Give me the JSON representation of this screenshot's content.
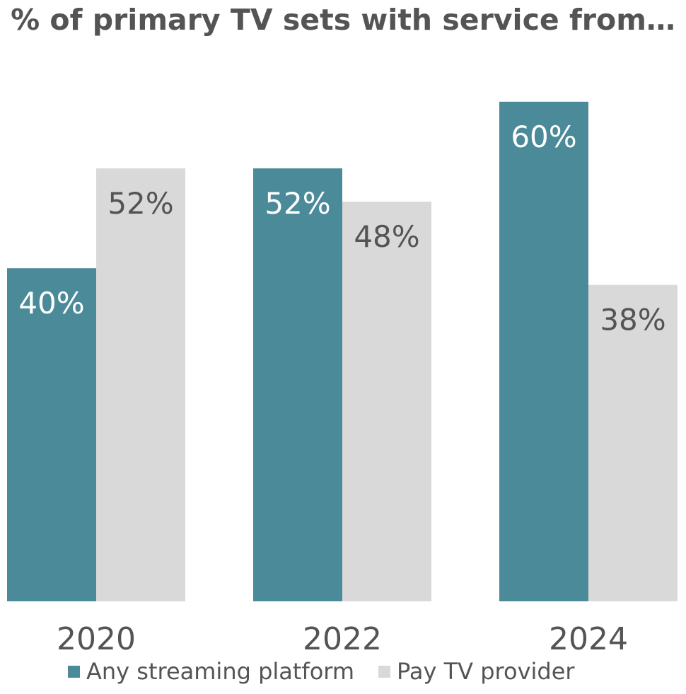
{
  "chart_data": {
    "type": "bar",
    "title": "% of primary TV sets with service from…",
    "categories": [
      "2020",
      "2022",
      "2024"
    ],
    "series": [
      {
        "name": "Any streaming platform",
        "values": [
          40,
          52,
          60
        ],
        "labels": [
          "40%",
          "52%",
          "60%"
        ],
        "color": "#4b8a98",
        "label_color": "#ffffff"
      },
      {
        "name": "Pay TV provider",
        "values": [
          52,
          48,
          38
        ],
        "labels": [
          "52%",
          "48%",
          "38%"
        ],
        "color": "#d9d9d9",
        "label_color": "#545454"
      }
    ],
    "ylim": [
      0,
      100
    ],
    "grid": false,
    "legend_position": "bottom"
  }
}
